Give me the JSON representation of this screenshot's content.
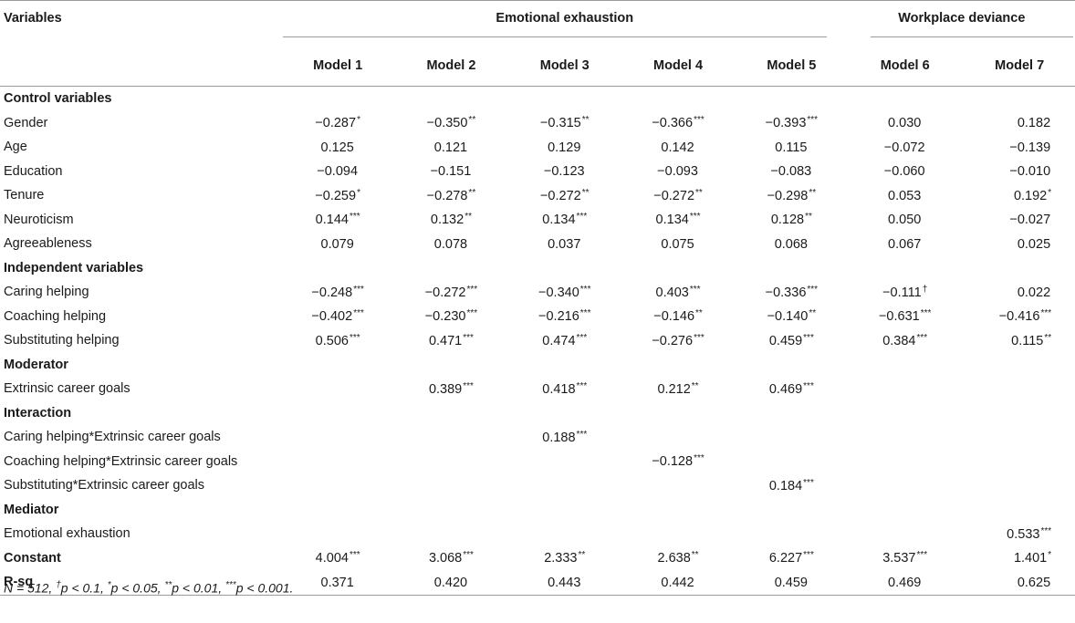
{
  "table": {
    "header": {
      "variables": "Variables",
      "group1": "Emotional exhaustion",
      "group2": "Workplace deviance",
      "models": [
        "Model 1",
        "Model 2",
        "Model 3",
        "Model 4",
        "Model 5",
        "Model 6",
        "Model 7"
      ]
    },
    "rows": [
      {
        "type": "section",
        "label": "Control variables"
      },
      {
        "type": "data",
        "label": "Gender",
        "cells": [
          [
            "−0.287",
            "*"
          ],
          [
            "−0.350",
            "**"
          ],
          [
            "−0.315",
            "**"
          ],
          [
            "−0.366",
            "***"
          ],
          [
            "−0.393",
            "***"
          ],
          [
            "0.030",
            ""
          ],
          [
            "0.182",
            ""
          ]
        ]
      },
      {
        "type": "data",
        "label": "Age",
        "cells": [
          [
            "0.125",
            ""
          ],
          [
            "0.121",
            ""
          ],
          [
            "0.129",
            ""
          ],
          [
            "0.142",
            ""
          ],
          [
            "0.115",
            ""
          ],
          [
            "−0.072",
            ""
          ],
          [
            "−0.139",
            ""
          ]
        ]
      },
      {
        "type": "data",
        "label": "Education",
        "cells": [
          [
            "−0.094",
            ""
          ],
          [
            "−0.151",
            ""
          ],
          [
            "−0.123",
            ""
          ],
          [
            "−0.093",
            ""
          ],
          [
            "−0.083",
            ""
          ],
          [
            "−0.060",
            ""
          ],
          [
            "−0.010",
            ""
          ]
        ]
      },
      {
        "type": "data",
        "label": "Tenure",
        "cells": [
          [
            "−0.259",
            "*"
          ],
          [
            "−0.278",
            "**"
          ],
          [
            "−0.272",
            "**"
          ],
          [
            "−0.272",
            "**"
          ],
          [
            "−0.298",
            "**"
          ],
          [
            "0.053",
            ""
          ],
          [
            "0.192",
            "*"
          ]
        ]
      },
      {
        "type": "data",
        "label": "Neuroticism",
        "cells": [
          [
            "0.144",
            "***"
          ],
          [
            "0.132",
            "**"
          ],
          [
            "0.134",
            "***"
          ],
          [
            "0.134",
            "***"
          ],
          [
            "0.128",
            "**"
          ],
          [
            "0.050",
            ""
          ],
          [
            "−0.027",
            ""
          ]
        ]
      },
      {
        "type": "data",
        "label": "Agreeableness",
        "cells": [
          [
            "0.079",
            ""
          ],
          [
            "0.078",
            ""
          ],
          [
            "0.037",
            ""
          ],
          [
            "0.075",
            ""
          ],
          [
            "0.068",
            ""
          ],
          [
            "0.067",
            ""
          ],
          [
            "0.025",
            ""
          ]
        ]
      },
      {
        "type": "section",
        "label": "Independent variables"
      },
      {
        "type": "data",
        "label": "Caring helping",
        "cells": [
          [
            "−0.248",
            "***"
          ],
          [
            "−0.272",
            "***"
          ],
          [
            "−0.340",
            "***"
          ],
          [
            "0.403",
            "***"
          ],
          [
            "−0.336",
            "***"
          ],
          [
            "−0.111",
            "†"
          ],
          [
            "0.022",
            ""
          ]
        ]
      },
      {
        "type": "data",
        "label": "Coaching helping",
        "cells": [
          [
            "−0.402",
            "***"
          ],
          [
            "−0.230",
            "***"
          ],
          [
            "−0.216",
            "***"
          ],
          [
            "−0.146",
            "**"
          ],
          [
            "−0.140",
            "**"
          ],
          [
            "−0.631",
            "***"
          ],
          [
            "−0.416",
            "***"
          ]
        ]
      },
      {
        "type": "data",
        "label": "Substituting helping",
        "cells": [
          [
            "0.506",
            "***"
          ],
          [
            "0.471",
            "***"
          ],
          [
            "0.474",
            "***"
          ],
          [
            "−0.276",
            "***"
          ],
          [
            "0.459",
            "***"
          ],
          [
            "0.384",
            "***"
          ],
          [
            "0.115",
            "**"
          ]
        ]
      },
      {
        "type": "section",
        "label": "Moderator"
      },
      {
        "type": "data",
        "label": "Extrinsic career goals",
        "cells": [
          [
            "",
            ""
          ],
          [
            "0.389",
            "***"
          ],
          [
            "0.418",
            "***"
          ],
          [
            "0.212",
            "**"
          ],
          [
            "0.469",
            "***"
          ],
          [
            "",
            ""
          ],
          [
            "",
            ""
          ]
        ]
      },
      {
        "type": "section",
        "label": "Interaction"
      },
      {
        "type": "data",
        "label": "Caring helping*Extrinsic career goals",
        "cells": [
          [
            "",
            ""
          ],
          [
            "",
            ""
          ],
          [
            "0.188",
            "***"
          ],
          [
            "",
            ""
          ],
          [
            "",
            ""
          ],
          [
            "",
            ""
          ],
          [
            "",
            ""
          ]
        ]
      },
      {
        "type": "data",
        "label": "Coaching helping*Extrinsic career goals",
        "cells": [
          [
            "",
            ""
          ],
          [
            "",
            ""
          ],
          [
            "",
            ""
          ],
          [
            "−0.128",
            "***"
          ],
          [
            "",
            ""
          ],
          [
            "",
            ""
          ],
          [
            "",
            ""
          ]
        ]
      },
      {
        "type": "data",
        "label": "Substituting*Extrinsic career goals",
        "cells": [
          [
            "",
            ""
          ],
          [
            "",
            ""
          ],
          [
            "",
            ""
          ],
          [
            "",
            ""
          ],
          [
            "0.184",
            "***"
          ],
          [
            "",
            ""
          ],
          [
            "",
            ""
          ]
        ]
      },
      {
        "type": "section",
        "label": "Mediator"
      },
      {
        "type": "data",
        "label": "Emotional exhaustion",
        "cells": [
          [
            "",
            ""
          ],
          [
            "",
            ""
          ],
          [
            "",
            ""
          ],
          [
            "",
            ""
          ],
          [
            "",
            ""
          ],
          [
            "",
            ""
          ],
          [
            "0.533",
            "***"
          ]
        ]
      },
      {
        "type": "bold",
        "label": "Constant",
        "cells": [
          [
            "4.004",
            "***"
          ],
          [
            "3.068",
            "***"
          ],
          [
            "2.333",
            "**"
          ],
          [
            "2.638",
            "**"
          ],
          [
            "6.227",
            "***"
          ],
          [
            "3.537",
            "***"
          ],
          [
            "1.401",
            "*"
          ]
        ]
      },
      {
        "type": "bold",
        "label": "R-sq",
        "cells": [
          [
            "0.371",
            ""
          ],
          [
            "0.420",
            ""
          ],
          [
            "0.443",
            ""
          ],
          [
            "0.442",
            ""
          ],
          [
            "0.459",
            ""
          ],
          [
            "0.469",
            ""
          ],
          [
            "0.625",
            ""
          ]
        ]
      }
    ]
  },
  "footnote": {
    "n": "N = 512, ",
    "dagger": "†",
    "t1": "p < 0.1, ",
    "s1": "*",
    "t2": "p < 0.05, ",
    "s2": "**",
    "t3": "p < 0.01, ",
    "s3": "***",
    "t4": "p < 0.001."
  }
}
